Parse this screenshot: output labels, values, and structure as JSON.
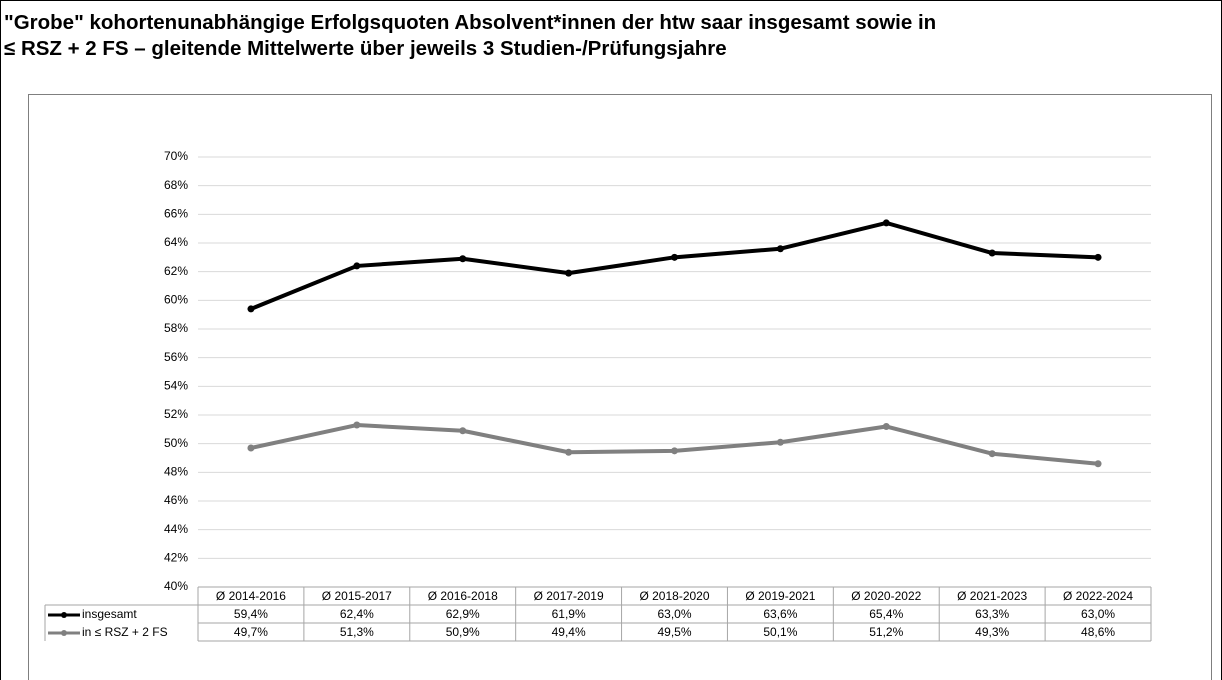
{
  "chart_data": {
    "type": "line",
    "title": [
      "\"Grobe\" kohortenunabhängige Erfolgsquoten Absolvent*innen der htw saar insgesamt sowie in",
      "≤ RSZ + 2 FS – gleitende Mittelwerte über jeweils 3 Studien-/Prüfungsjahre"
    ],
    "categories": [
      "Ø 2014-2016",
      "Ø 2015-2017",
      "Ø 2016-2018",
      "Ø 2017-2019",
      "Ø 2018-2020",
      "Ø 2019-2021",
      "Ø 2020-2022",
      "Ø 2021-2023",
      "Ø 2022-2024"
    ],
    "series": [
      {
        "name": "insgesamt",
        "color": "#000000",
        "values": [
          59.4,
          62.4,
          62.9,
          61.9,
          63.0,
          63.6,
          65.4,
          63.3,
          63.0
        ],
        "value_labels": [
          "59,4%",
          "62,4%",
          "62,9%",
          "61,9%",
          "63,0%",
          "63,6%",
          "65,4%",
          "63,3%",
          "63,0%"
        ]
      },
      {
        "name": "in ≤ RSZ + 2 FS",
        "color": "#808080",
        "values": [
          49.7,
          51.3,
          50.9,
          49.4,
          49.5,
          50.1,
          51.2,
          49.3,
          48.6
        ],
        "value_labels": [
          "49,7%",
          "51,3%",
          "50,9%",
          "49,4%",
          "49,5%",
          "50,1%",
          "51,2%",
          "49,3%",
          "48,6%"
        ]
      }
    ],
    "ylim": [
      40,
      70
    ],
    "yticks": [
      {
        "value": 40,
        "label": "40%"
      },
      {
        "value": 42,
        "label": "42%"
      },
      {
        "value": 44,
        "label": "44%"
      },
      {
        "value": 46,
        "label": "46%"
      },
      {
        "value": 48,
        "label": "48%"
      },
      {
        "value": 50,
        "label": "50%"
      },
      {
        "value": 52,
        "label": "52%"
      },
      {
        "value": 54,
        "label": "54%"
      },
      {
        "value": 56,
        "label": "56%"
      },
      {
        "value": 58,
        "label": "58%"
      },
      {
        "value": 60,
        "label": "60%"
      },
      {
        "value": 62,
        "label": "62%"
      },
      {
        "value": 64,
        "label": "64%"
      },
      {
        "value": 66,
        "label": "66%"
      },
      {
        "value": 68,
        "label": "68%"
      },
      {
        "value": 70,
        "label": "70%"
      }
    ],
    "grid": true
  }
}
